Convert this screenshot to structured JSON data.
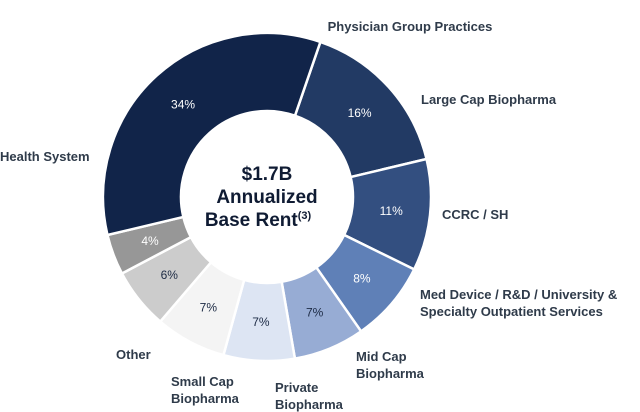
{
  "chart_data": {
    "type": "pie",
    "center_label": {
      "line1": "$1.7B",
      "line2": "Annualized",
      "line3": "Base Rent",
      "footnote": "(3)"
    },
    "slices": [
      {
        "name": "Physician Group Practices",
        "label_lines": [
          "Physician Group Practices"
        ],
        "value": 16,
        "value_label": "16%",
        "color": "#223a64",
        "text_color": "#ffffff"
      },
      {
        "name": "Large Cap Biopharma",
        "label_lines": [
          "Large Cap Biopharma"
        ],
        "value": 11,
        "value_label": "11%",
        "color": "#334f80",
        "text_color": "#ffffff"
      },
      {
        "name": "CCRC / SH",
        "label_lines": [
          "CCRC / SH"
        ],
        "value": 8,
        "value_label": "8%",
        "color": "#5f80b7",
        "text_color": "#ffffff"
      },
      {
        "name": "Med Device / R&D / University & Specialty Outpatient Services",
        "label_lines": [
          "Med Device / R&D / University &",
          "Specialty Outpatient Services"
        ],
        "value": 7,
        "value_label": "7%",
        "color": "#97acd4",
        "text_color": "#1c2a44"
      },
      {
        "name": "Mid Cap Biopharma",
        "label_lines": [
          "Mid Cap",
          "Biopharma"
        ],
        "value": 7,
        "value_label": "7%",
        "color": "#dde5f3",
        "text_color": "#1c2a44"
      },
      {
        "name": "Private Biopharma",
        "label_lines": [
          "Private",
          "Biopharma"
        ],
        "value": 7,
        "value_label": "7%",
        "color": "#f4f4f4",
        "text_color": "#1c2a44"
      },
      {
        "name": "Small Cap Biopharma",
        "label_lines": [
          "Small Cap",
          "Biopharma"
        ],
        "value": 6,
        "value_label": "6%",
        "color": "#cccccc",
        "text_color": "#1c2a44"
      },
      {
        "name": "Other",
        "label_lines": [
          "Other"
        ],
        "value": 4,
        "value_label": "4%",
        "color": "#979797",
        "text_color": "#ffffff"
      },
      {
        "name": "Health System",
        "label_lines": [
          "Health System"
        ],
        "value": 34,
        "value_label": "34%",
        "color": "#112449",
        "text_color": "#ffffff"
      }
    ]
  }
}
